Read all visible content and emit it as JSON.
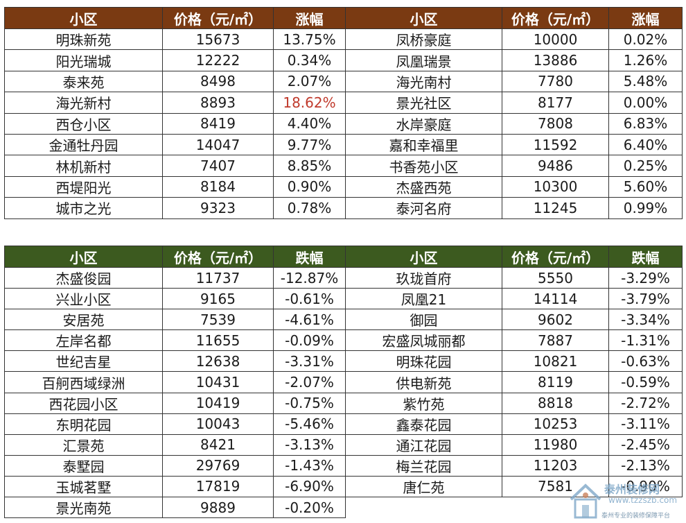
{
  "rise_table": {
    "headers": [
      "小区",
      "价格（元/㎡）",
      "涨幅",
      "小区",
      "价格（元/㎡）",
      "涨幅"
    ],
    "rows": [
      [
        "明珠新苑",
        "15673",
        "13.75%",
        "凤桥豪庭",
        "10000",
        "0.02%"
      ],
      [
        "阳光瑞城",
        "12222",
        "0.34%",
        "凤凰瑞景",
        "13886",
        "1.26%"
      ],
      [
        "泰来苑",
        "8498",
        "2.07%",
        "海光南村",
        "7780",
        "5.48%"
      ],
      [
        "海光新村",
        "8893",
        "18.62%",
        "景光社区",
        "8177",
        "0.00%"
      ],
      [
        "西仓小区",
        "8419",
        "4.40%",
        "水岸豪庭",
        "7808",
        "6.83%"
      ],
      [
        "金通牡丹园",
        "14047",
        "9.77%",
        "嘉和幸福里",
        "11592",
        "6.40%"
      ],
      [
        "林机新村",
        "7407",
        "8.85%",
        "书香苑小区",
        "9486",
        "0.25%"
      ],
      [
        "西堤阳光",
        "8184",
        "0.90%",
        "杰盛西苑",
        "10300",
        "5.60%"
      ],
      [
        "城市之光",
        "9323",
        "0.78%",
        "泰河名府",
        "11245",
        "0.99%"
      ]
    ]
  },
  "fall_table": {
    "headers": [
      "小区",
      "价格（元/㎡）",
      "跌幅",
      "小区",
      "价格（元/㎡）",
      "跌幅"
    ],
    "rows": [
      [
        "杰盛俊园",
        "11737",
        "-12.87%",
        "玖珑首府",
        "5550",
        "-3.29%"
      ],
      [
        "兴业小区",
        "9165",
        "-0.61%",
        "凤凰21",
        "14114",
        "-3.79%"
      ],
      [
        "安居苑",
        "7539",
        "-4.61%",
        "御园",
        "9602",
        "-3.34%"
      ],
      [
        "左岸名都",
        "11655",
        "-0.09%",
        "宏盛凤城丽都",
        "7887",
        "-1.31%"
      ],
      [
        "世纪吉星",
        "12638",
        "-3.31%",
        "明珠花园",
        "10821",
        "-0.63%"
      ],
      [
        "百舸西域绿洲",
        "10431",
        "-2.07%",
        "供电新苑",
        "8119",
        "-0.59%"
      ],
      [
        "西花园小区",
        "10419",
        "-0.75%",
        "紫竹苑",
        "8818",
        "-2.72%"
      ],
      [
        "东明花园",
        "10043",
        "-5.46%",
        "鑫泰花园",
        "10253",
        "-3.11%"
      ],
      [
        "汇景苑",
        "8421",
        "-3.13%",
        "通江花园",
        "11980",
        "-2.45%"
      ],
      [
        "泰墅园",
        "29769",
        "-1.43%",
        "梅兰花园",
        "11203",
        "-2.13%"
      ],
      [
        "玉城茗墅",
        "17819",
        "-6.90%",
        "唐仁苑",
        "7581",
        "-0.90%"
      ],
      [
        "景光南苑",
        "9889",
        "-0.20%",
        "",
        "",
        ""
      ]
    ]
  },
  "highlight": {
    "rise_color": "#c0392b"
  },
  "watermark": {
    "site": "泰州装修网",
    "url": "www.tzzszb.com",
    "slogan": "泰州专业的装修保障平台"
  }
}
